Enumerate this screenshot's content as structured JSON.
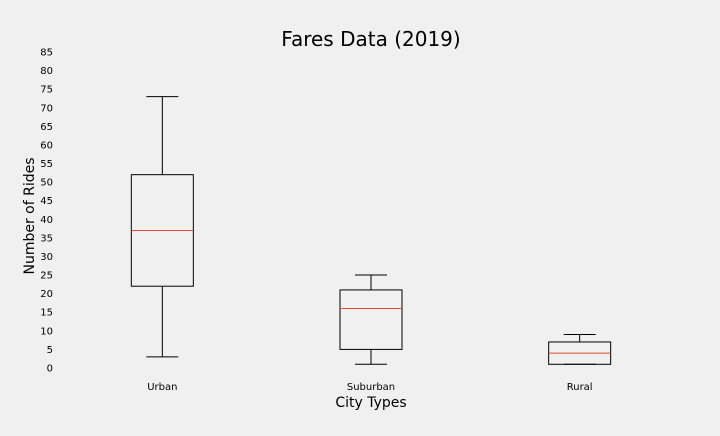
{
  "chart_data": {
    "type": "box",
    "title": "Fares Data (2019)",
    "xlabel": "City Types",
    "ylabel": "Number of Rides",
    "ylim": [
      0,
      85
    ],
    "yticks": [
      0,
      5,
      10,
      15,
      20,
      25,
      30,
      35,
      40,
      45,
      50,
      55,
      60,
      65,
      70,
      75,
      80,
      85
    ],
    "grid": false,
    "categories": [
      "Urban",
      "Suburban",
      "Rural"
    ],
    "boxes": [
      {
        "category": "Urban",
        "whisker_low": 3,
        "q1": 22,
        "median": 37,
        "q3": 52,
        "whisker_high": 73
      },
      {
        "category": "Suburban",
        "whisker_low": 1,
        "q1": 5,
        "median": 16,
        "q3": 21,
        "whisker_high": 25
      },
      {
        "category": "Rural",
        "whisker_low": 1,
        "q1": 1,
        "median": 4,
        "q3": 7,
        "whisker_high": 9
      }
    ],
    "colors": {
      "background": "#f0f0f0",
      "box": "#000000",
      "median": "#e24a33"
    }
  }
}
